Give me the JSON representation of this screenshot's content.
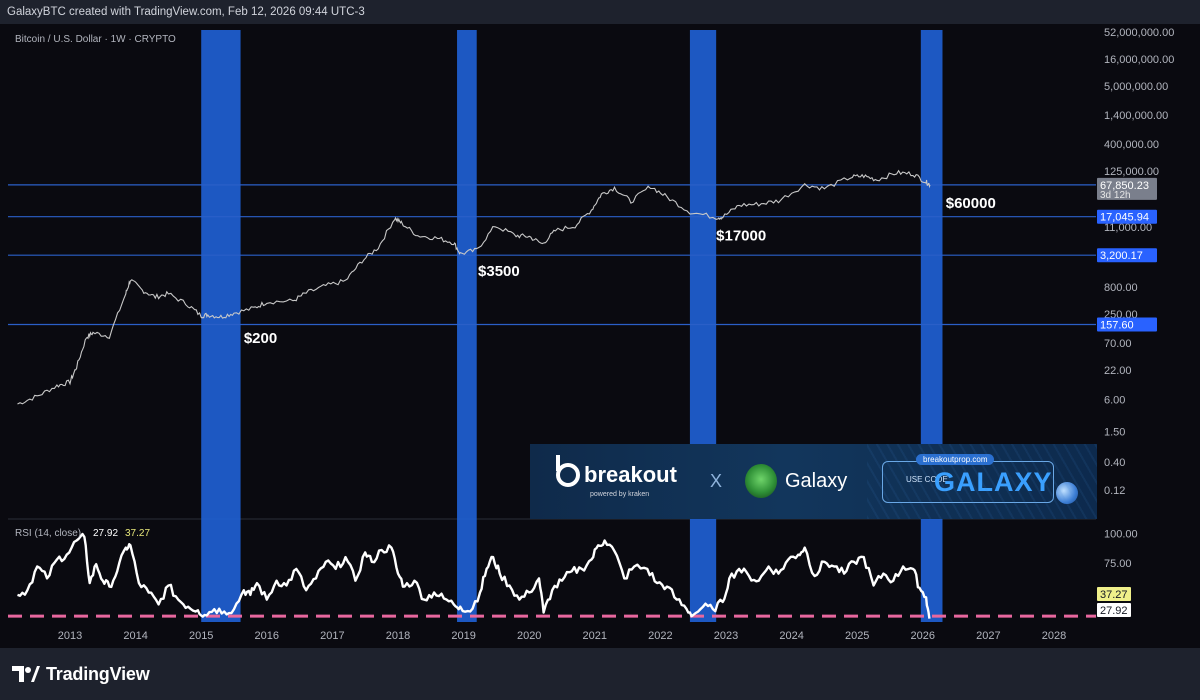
{
  "header": {
    "attribution": "GalaxyBTC created with TradingView.com, Feb 12, 2026 09:44 UTC-3"
  },
  "footer": {
    "logo_text": "TradingView"
  },
  "colors": {
    "background": "#0a0a10",
    "band": "#1f5fd1",
    "hline": "#2a5fc8",
    "price_line": "#c8c8c8",
    "rsi_line": "#ffffff",
    "rsi_threshold": "#e8679e",
    "label_blue": "#2962ff"
  },
  "promo": {
    "brand": "breakout",
    "brand_sub": "powered by kraken",
    "x": "X",
    "partner": "Galaxy",
    "url": "breakoutprop.com",
    "use_code": "USE CODE",
    "code": "GALAXY"
  },
  "chart_data": [
    {
      "type": "line",
      "title": "Bitcoin / U.S. Dollar · 1W · CRYPTO",
      "yscale": "log",
      "ylim": [
        0.1,
        52000000
      ],
      "y_ticks": [
        "52,000,000.00",
        "16,000,000.00",
        "5,000,000.00",
        "1,400,000.00",
        "400,000.00",
        "125,000.00",
        "11,000.00",
        "800.00",
        "250.00",
        "70.00",
        "22.00",
        "6.00",
        "1.50",
        "0.40",
        "0.12"
      ],
      "y_tick_values": [
        52000000,
        16000000,
        5000000,
        1400000,
        400000,
        125000,
        11000,
        800,
        250,
        70,
        22,
        6,
        1.5,
        0.4,
        0.12
      ],
      "x_ticks": [
        "2013",
        "2014",
        "2015",
        "2016",
        "2017",
        "2018",
        "2019",
        "2020",
        "2021",
        "2022",
        "2023",
        "2024",
        "2025",
        "2026",
        "2027",
        "2028"
      ],
      "series": [
        {
          "name": "BTCUSD weekly",
          "x": [
            2012.2,
            2012.5,
            2012.8,
            2013.0,
            2013.1,
            2013.25,
            2013.35,
            2013.6,
            2013.85,
            2013.92,
            2014.1,
            2014.3,
            2014.5,
            2014.8,
            2015.0,
            2015.1,
            2015.3,
            2015.5,
            2015.8,
            2016.0,
            2016.4,
            2016.6,
            2016.9,
            2017.2,
            2017.45,
            2017.7,
            2017.95,
            2018.05,
            2018.3,
            2018.6,
            2018.85,
            2018.95,
            2019.2,
            2019.48,
            2019.8,
            2020.0,
            2020.2,
            2020.4,
            2020.7,
            2020.95,
            2021.1,
            2021.3,
            2021.55,
            2021.85,
            2022.1,
            2022.45,
            2022.85,
            2022.95,
            2023.2,
            2023.5,
            2023.8,
            2024.2,
            2024.5,
            2024.9,
            2025.1,
            2025.3,
            2025.6,
            2025.85,
            2026.05,
            2026.11
          ],
          "values": [
            5,
            7,
            11,
            13,
            25,
            90,
            110,
            95,
            600,
            1100,
            700,
            520,
            600,
            370,
            230,
            240,
            220,
            260,
            320,
            420,
            440,
            620,
            850,
            1050,
            2500,
            4500,
            16000,
            13000,
            7500,
            6700,
            5500,
            3400,
            4000,
            11500,
            7500,
            7200,
            5200,
            9300,
            11500,
            23000,
            45000,
            60000,
            33000,
            64000,
            40000,
            21000,
            16500,
            16800,
            28000,
            29500,
            34000,
            68000,
            58000,
            95000,
            100000,
            85000,
            115000,
            110000,
            77000,
            67850
          ]
        }
      ],
      "horizontal_levels": [
        {
          "value": 67850.23,
          "label": "67,850.23",
          "sublabel": "3d 12h"
        },
        {
          "value": 17045.94,
          "label": "17,045.94"
        },
        {
          "value": 3200.17,
          "label": "3,200.17"
        },
        {
          "value": 157.6,
          "label": "157.60"
        }
      ],
      "highlight_bands": [
        [
          2015.0,
          2015.6
        ],
        [
          2018.9,
          2019.2
        ],
        [
          2022.45,
          2022.85
        ],
        [
          2025.97,
          2026.3
        ]
      ],
      "annotations": [
        {
          "text": "$200",
          "x": 2015.65,
          "y": 70
        },
        {
          "text": "$3500",
          "x": 2019.22,
          "y": 1300
        },
        {
          "text": "$17000",
          "x": 2022.85,
          "y": 6000
        },
        {
          "text": "$60000",
          "x": 2026.35,
          "y": 25000
        }
      ]
    },
    {
      "type": "line",
      "title": "RSI (14, close)",
      "legend_values": [
        "27.92",
        "37.27"
      ],
      "ylim": [
        20,
        108
      ],
      "y_ticks": [
        "100.00",
        "75.00",
        "50.00"
      ],
      "y_tick_values": [
        100,
        75,
        50
      ],
      "threshold": 30,
      "current_labels": [
        {
          "value": 37.27,
          "label": "37.27"
        },
        {
          "value": 27.92,
          "label": "27.92"
        }
      ],
      "series": [
        {
          "name": "RSI",
          "x": [
            2012.2,
            2012.35,
            2012.5,
            2012.65,
            2012.8,
            2012.95,
            2013.1,
            2013.22,
            2013.3,
            2013.4,
            2013.5,
            2013.6,
            2013.72,
            2013.85,
            2013.92,
            2014.05,
            2014.2,
            2014.35,
            2014.5,
            2014.65,
            2014.8,
            2014.95,
            2015.05,
            2015.2,
            2015.35,
            2015.5,
            2015.65,
            2015.75,
            2015.85,
            2016.0,
            2016.15,
            2016.3,
            2016.45,
            2016.6,
            2016.75,
            2016.9,
            2017.05,
            2017.2,
            2017.35,
            2017.5,
            2017.6,
            2017.75,
            2017.9,
            2018.0,
            2018.1,
            2018.25,
            2018.4,
            2018.55,
            2018.7,
            2018.85,
            2018.95,
            2019.1,
            2019.25,
            2019.35,
            2019.45,
            2019.55,
            2019.7,
            2019.85,
            2020.0,
            2020.15,
            2020.22,
            2020.35,
            2020.5,
            2020.65,
            2020.8,
            2020.95,
            2021.05,
            2021.15,
            2021.3,
            2021.45,
            2021.6,
            2021.8,
            2021.95,
            2022.1,
            2022.25,
            2022.4,
            2022.5,
            2022.65,
            2022.8,
            2022.95,
            2023.05,
            2023.2,
            2023.35,
            2023.5,
            2023.65,
            2023.8,
            2023.95,
            2024.1,
            2024.2,
            2024.35,
            2024.5,
            2024.65,
            2024.8,
            2024.95,
            2025.1,
            2025.25,
            2025.4,
            2025.55,
            2025.7,
            2025.85,
            2025.95,
            2026.05,
            2026.1
          ],
          "values": [
            48,
            52,
            72,
            62,
            78,
            82,
            94,
            97,
            58,
            74,
            60,
            55,
            68,
            88,
            90,
            58,
            50,
            40,
            56,
            44,
            38,
            35,
            31,
            36,
            34,
            36,
            52,
            48,
            58,
            44,
            60,
            56,
            70,
            52,
            62,
            76,
            70,
            80,
            60,
            84,
            76,
            86,
            88,
            66,
            55,
            60,
            44,
            50,
            45,
            40,
            38,
            34,
            50,
            70,
            80,
            66,
            56,
            44,
            50,
            62,
            33,
            52,
            60,
            68,
            70,
            78,
            90,
            94,
            85,
            62,
            72,
            70,
            58,
            55,
            44,
            36,
            31,
            38,
            36,
            42,
            62,
            70,
            64,
            60,
            72,
            66,
            78,
            82,
            88,
            64,
            76,
            72,
            66,
            76,
            80,
            56,
            66,
            60,
            72,
            70,
            54,
            46,
            27.92
          ]
        }
      ]
    }
  ]
}
